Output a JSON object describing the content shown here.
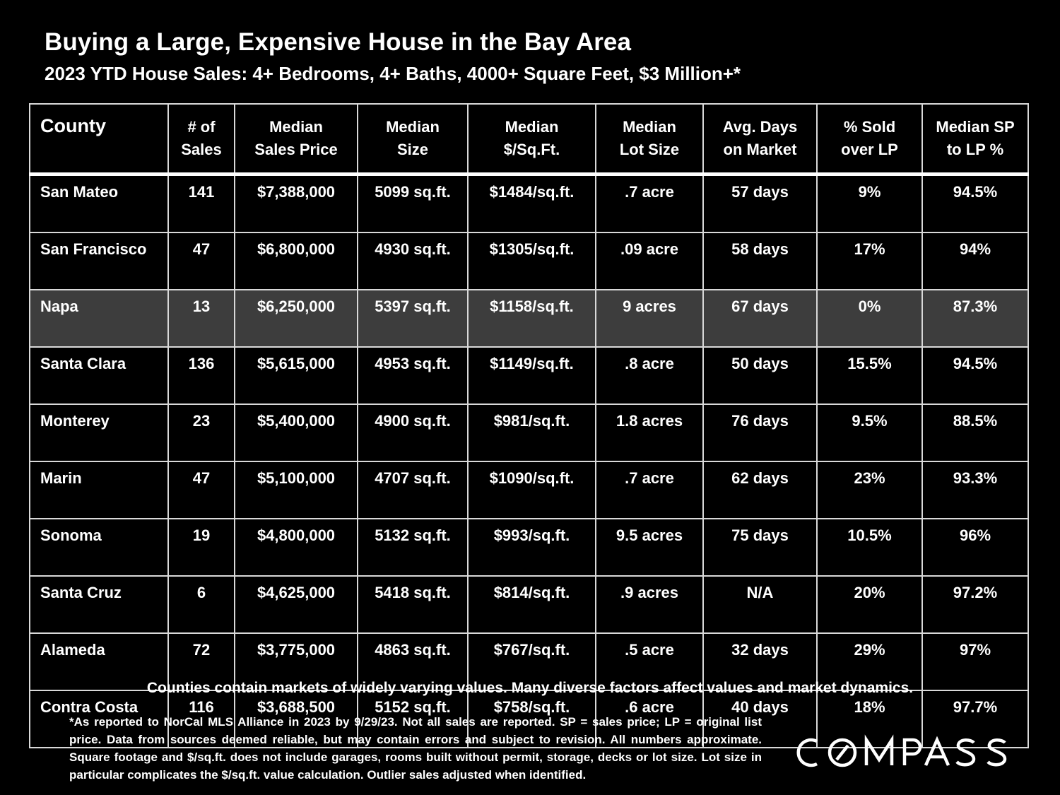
{
  "header": {
    "title": "Buying a Large, Expensive House in the Bay Area",
    "subtitle": "2023 YTD House Sales:  4+ Bedrooms, 4+ Baths, 4000+ Square Feet, $3 Million+*"
  },
  "table": {
    "columns": [
      {
        "line1": "County",
        "line2": ""
      },
      {
        "line1": "# of",
        "line2": "Sales"
      },
      {
        "line1": "Median",
        "line2": "Sales Price"
      },
      {
        "line1": "Median",
        "line2": "Size"
      },
      {
        "line1": "Median",
        "line2": "$/Sq.Ft."
      },
      {
        "line1": "Median",
        "line2": "Lot Size"
      },
      {
        "line1": "Avg. Days",
        "line2": "on Market"
      },
      {
        "line1": "% Sold",
        "line2": "over LP"
      },
      {
        "line1": "Median SP",
        "line2": "to LP %"
      }
    ],
    "rows": [
      [
        "San Mateo",
        "141",
        "$7,388,000",
        "5099 sq.ft.",
        "$1484/sq.ft.",
        ".7 acre",
        "57 days",
        "9%",
        "94.5%"
      ],
      [
        "San Francisco",
        "47",
        "$6,800,000",
        "4930 sq.ft.",
        "$1305/sq.ft.",
        ".09 acre",
        "58 days",
        "17%",
        "94%"
      ],
      [
        "Napa",
        "13",
        "$6,250,000",
        "5397 sq.ft.",
        "$1158/sq.ft.",
        "9 acres",
        "67 days",
        "0%",
        "87.3%"
      ],
      [
        "Santa Clara",
        "136",
        "$5,615,000",
        "4953 sq.ft.",
        "$1149/sq.ft.",
        ".8 acre",
        "50 days",
        "15.5%",
        "94.5%"
      ],
      [
        "Monterey",
        "23",
        "$5,400,000",
        "4900 sq.ft.",
        "$981/sq.ft.",
        "1.8 acres",
        "76 days",
        "9.5%",
        "88.5%"
      ],
      [
        "Marin",
        "47",
        "$5,100,000",
        "4707 sq.ft.",
        "$1090/sq.ft.",
        ".7 acre",
        "62 days",
        "23%",
        "93.3%"
      ],
      [
        "Sonoma",
        "19",
        "$4,800,000",
        "5132 sq.ft.",
        "$993/sq.ft.",
        "9.5 acres",
        "75 days",
        "10.5%",
        "96%"
      ],
      [
        "Santa Cruz",
        "6",
        "$4,625,000",
        "5418 sq.ft.",
        "$814/sq.ft.",
        ".9 acres",
        "N/A",
        "20%",
        "97.2%"
      ],
      [
        "Alameda",
        "72",
        "$3,775,000",
        "4863 sq.ft.",
        "$767/sq.ft.",
        ".5 acre",
        "32 days",
        "29%",
        "97%"
      ],
      [
        "Contra Costa",
        "116",
        "$3,688,500",
        "5152 sq.ft.",
        "$758/sq.ft.",
        ".6 acre",
        "40 days",
        "18%",
        "97.7%"
      ]
    ],
    "highlight_row": "Napa",
    "highlight_color": "#3d3d3d"
  },
  "note": "Counties contain markets of widely varying values. Many diverse factors affect values and market dynamics.",
  "footnote": "*As reported to NorCal MLS Alliance in 2023 by 9/29/23. Not all sales are reported. SP = sales price;  LP = original list price. Data from sources deemed reliable, but may contain errors and subject to revision. All numbers approximate. Square footage and $/sq.ft. does not include garages, rooms built without permit, storage, decks or lot size. Lot size in particular complicates the $/sq.ft. value calculation. Outlier sales adjusted when identified.",
  "logo": {
    "text": "COMPASS",
    "icon": "compass-logo"
  }
}
